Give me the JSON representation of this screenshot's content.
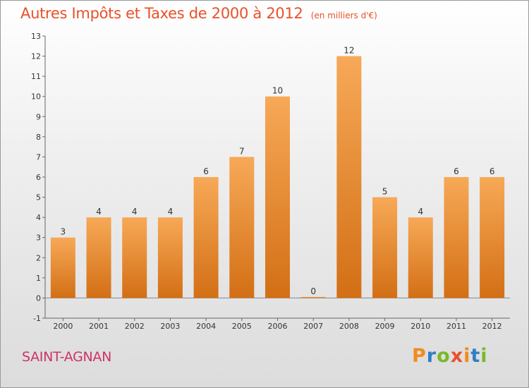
{
  "title": "Autres Impôts et Taxes de 2000 à 2012",
  "subtitle": "(en milliers d'€)",
  "commune": "SAINT-AGNAN",
  "brand": {
    "text": "Proxiti",
    "letter_colors": [
      "#f08c1e",
      "#2f7fc4",
      "#7ab929",
      "#e8512a",
      "#f08c1e",
      "#2f7fc4",
      "#7ab929"
    ]
  },
  "colors": {
    "bar_top": "#f7a957",
    "bar_bottom": "#d36f15",
    "title": "#e8512a",
    "commune": "#cc3366"
  },
  "chart_data": {
    "type": "bar",
    "categories": [
      "2000",
      "2001",
      "2002",
      "2003",
      "2004",
      "2005",
      "2006",
      "2007",
      "2008",
      "2009",
      "2010",
      "2011",
      "2012"
    ],
    "values": [
      3,
      4,
      4,
      4,
      6,
      7,
      10,
      0,
      12,
      5,
      4,
      6,
      6
    ],
    "y_ticks": [
      -1,
      0,
      1,
      2,
      3,
      4,
      5,
      6,
      7,
      8,
      9,
      10,
      11,
      12,
      13
    ],
    "ylim": [
      -1,
      13
    ],
    "grid": false,
    "data_labels": true
  }
}
